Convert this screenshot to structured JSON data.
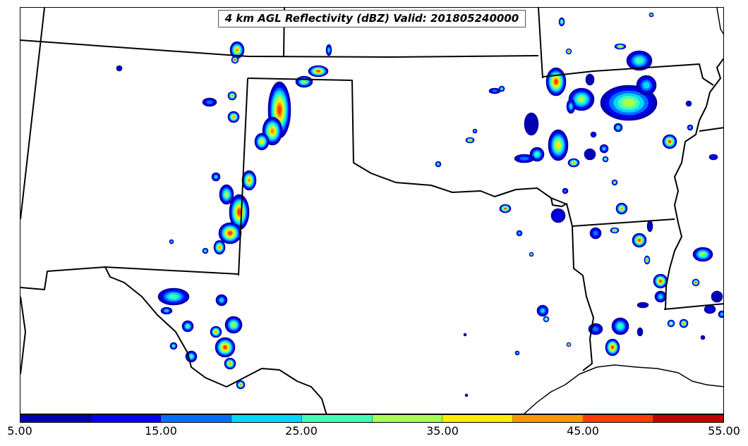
{
  "map": {
    "title": "4 km AGL Reflectivity (dBZ) Valid: 201805240000",
    "variable": "reflectivity",
    "units": "dBZ",
    "valid_time": "201805240000"
  },
  "colorbar": {
    "colors": [
      "#0000b4",
      "#0000f8",
      "#0070ff",
      "#00d8ff",
      "#40ffb8",
      "#a8ff50",
      "#ffee00",
      "#ff9600",
      "#ff3c00",
      "#c40000"
    ],
    "tick_labels": [
      "5.00",
      "15.00",
      "25.00",
      "35.00",
      "45.00",
      "55.00"
    ],
    "min": 5,
    "max": 55,
    "interval": 5
  }
}
